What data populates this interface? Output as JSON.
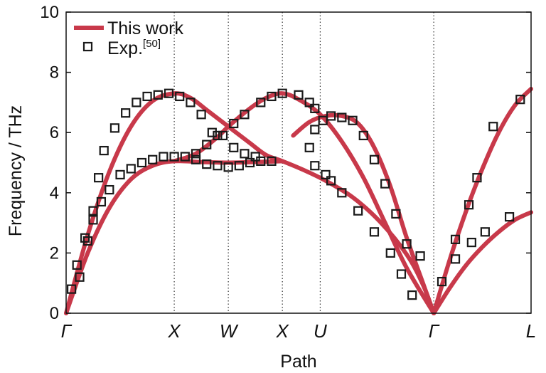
{
  "chart_data": {
    "type": "line",
    "title": "",
    "xlabel": "Path",
    "ylabel": "Frequency / THz",
    "ylim": [
      0,
      10
    ],
    "yticks": [
      0,
      2,
      4,
      6,
      8,
      10
    ],
    "x_range": [
      0,
      8.6
    ],
    "high_symmetry_points": [
      {
        "label": "Γ",
        "x": 0
      },
      {
        "label": "X",
        "x": 2
      },
      {
        "label": "W",
        "x": 3
      },
      {
        "label": "X",
        "x": 4
      },
      {
        "label": "U",
        "x": 4.7
      },
      {
        "label": "Γ",
        "x": 6.8
      },
      {
        "label": "L",
        "x": 8.6
      }
    ],
    "grid": "dotted vertical lines at high-symmetry points",
    "legend_position": "top-left",
    "colors": {
      "calc": "#c8394a",
      "exp": "#1a1a1a"
    },
    "legend": [
      {
        "label": "This work",
        "marker": "line"
      },
      {
        "label": "Exp.",
        "superscript": "[50]",
        "marker": "open-square"
      }
    ],
    "series": [
      {
        "name": "This work",
        "branches": [
          [
            [
              0,
              0
            ],
            [
              0.4,
              2.0
            ],
            [
              0.8,
              3.5
            ],
            [
              1.2,
              4.45
            ],
            [
              1.6,
              4.9
            ],
            [
              2,
              5.05
            ],
            [
              2.5,
              5.02
            ],
            [
              3,
              5.0
            ],
            [
              3.5,
              5.02
            ],
            [
              4,
              5.05
            ]
          ],
          [
            [
              0,
              0
            ],
            [
              0.4,
              2.6
            ],
            [
              0.8,
              4.7
            ],
            [
              1.2,
              6.2
            ],
            [
              1.6,
              7.05
            ],
            [
              2,
              7.3
            ],
            [
              2.3,
              7.15
            ],
            [
              2.6,
              6.75
            ],
            [
              3,
              6.2
            ],
            [
              3.4,
              5.65
            ],
            [
              3.7,
              5.25
            ],
            [
              4,
              5.05
            ],
            [
              4.4,
              4.75
            ],
            [
              4.8,
              4.4
            ],
            [
              5.3,
              3.85
            ],
            [
              5.8,
              3.05
            ],
            [
              6.3,
              1.95
            ],
            [
              6.6,
              0.95
            ],
            [
              6.8,
              0
            ]
          ],
          [
            [
              2,
              5.05
            ],
            [
              2.4,
              5.3
            ],
            [
              2.8,
              5.85
            ],
            [
              3,
              6.2
            ],
            [
              3.4,
              6.8
            ],
            [
              3.7,
              7.15
            ],
            [
              4,
              7.3
            ],
            [
              4.3,
              7.1
            ],
            [
              4.7,
              6.6
            ],
            [
              5.1,
              5.7
            ],
            [
              5.5,
              4.5
            ],
            [
              5.9,
              3.0
            ],
            [
              6.3,
              1.5
            ],
            [
              6.8,
              0
            ]
          ],
          [
            [
              4.2,
              5.9
            ],
            [
              4.5,
              6.35
            ],
            [
              4.8,
              6.55
            ],
            [
              5.1,
              6.55
            ],
            [
              5.4,
              6.3
            ],
            [
              5.7,
              5.5
            ],
            [
              6.0,
              4.2
            ],
            [
              6.3,
              2.5
            ],
            [
              6.6,
              1.0
            ],
            [
              6.8,
              0
            ]
          ],
          [
            [
              6.8,
              0
            ],
            [
              7.1,
              0.85
            ],
            [
              7.4,
              1.6
            ],
            [
              7.7,
              2.2
            ],
            [
              8.0,
              2.7
            ],
            [
              8.3,
              3.1
            ],
            [
              8.6,
              3.35
            ]
          ],
          [
            [
              6.8,
              0
            ],
            [
              7.1,
              1.8
            ],
            [
              7.4,
              3.4
            ],
            [
              7.7,
              4.8
            ],
            [
              8.0,
              6.0
            ],
            [
              8.3,
              6.9
            ],
            [
              8.6,
              7.45
            ]
          ]
        ]
      },
      {
        "name": "Exp.",
        "points": [
          [
            0.1,
            0.8
          ],
          [
            0.2,
            1.6
          ],
          [
            0.35,
            2.5
          ],
          [
            0.5,
            3.1
          ],
          [
            0.65,
            3.7
          ],
          [
            0.8,
            4.1
          ],
          [
            1.0,
            4.6
          ],
          [
            1.2,
            4.8
          ],
          [
            1.4,
            5.0
          ],
          [
            1.6,
            5.1
          ],
          [
            1.8,
            5.2
          ],
          [
            2.0,
            5.2
          ],
          [
            2.2,
            5.2
          ],
          [
            2.4,
            5.1
          ],
          [
            2.6,
            4.95
          ],
          [
            2.8,
            4.9
          ],
          [
            3.0,
            4.85
          ],
          [
            3.2,
            4.9
          ],
          [
            3.4,
            5.0
          ],
          [
            3.6,
            5.05
          ],
          [
            3.8,
            5.05
          ],
          [
            0.25,
            1.2
          ],
          [
            0.4,
            2.4
          ],
          [
            0.5,
            3.4
          ],
          [
            0.6,
            4.5
          ],
          [
            0.7,
            5.4
          ],
          [
            0.9,
            6.15
          ],
          [
            1.1,
            6.65
          ],
          [
            1.3,
            7.0
          ],
          [
            1.5,
            7.2
          ],
          [
            1.7,
            7.25
          ],
          [
            1.9,
            7.3
          ],
          [
            2.1,
            7.2
          ],
          [
            2.3,
            7.0
          ],
          [
            2.5,
            6.6
          ],
          [
            2.7,
            6.0
          ],
          [
            2.9,
            5.9
          ],
          [
            3.1,
            5.5
          ],
          [
            3.3,
            5.3
          ],
          [
            3.5,
            5.2
          ],
          [
            2.4,
            5.3
          ],
          [
            2.6,
            5.6
          ],
          [
            2.8,
            5.9
          ],
          [
            3.1,
            6.3
          ],
          [
            3.3,
            6.6
          ],
          [
            3.6,
            7.0
          ],
          [
            3.8,
            7.2
          ],
          [
            4.0,
            7.3
          ],
          [
            4.3,
            7.25
          ],
          [
            4.5,
            7.0
          ],
          [
            4.6,
            6.8
          ],
          [
            4.5,
            5.5
          ],
          [
            4.6,
            4.9
          ],
          [
            4.8,
            4.6
          ],
          [
            4.9,
            4.4
          ],
          [
            5.1,
            4.0
          ],
          [
            5.4,
            3.4
          ],
          [
            5.7,
            2.7
          ],
          [
            6.0,
            2.0
          ],
          [
            6.2,
            1.3
          ],
          [
            6.4,
            0.6
          ],
          [
            4.6,
            6.1
          ],
          [
            4.75,
            6.4
          ],
          [
            4.9,
            6.55
          ],
          [
            5.1,
            6.5
          ],
          [
            5.3,
            6.4
          ],
          [
            5.5,
            5.9
          ],
          [
            5.7,
            5.1
          ],
          [
            5.9,
            4.3
          ],
          [
            6.1,
            3.3
          ],
          [
            6.3,
            2.3
          ],
          [
            6.55,
            1.9
          ],
          [
            6.95,
            1.05
          ],
          [
            7.2,
            1.8
          ],
          [
            7.5,
            2.35
          ],
          [
            7.75,
            2.7
          ],
          [
            8.2,
            3.2
          ],
          [
            7.2,
            2.45
          ],
          [
            7.45,
            3.6
          ],
          [
            7.6,
            4.5
          ],
          [
            7.9,
            6.2
          ],
          [
            8.4,
            7.1
          ]
        ]
      }
    ]
  }
}
